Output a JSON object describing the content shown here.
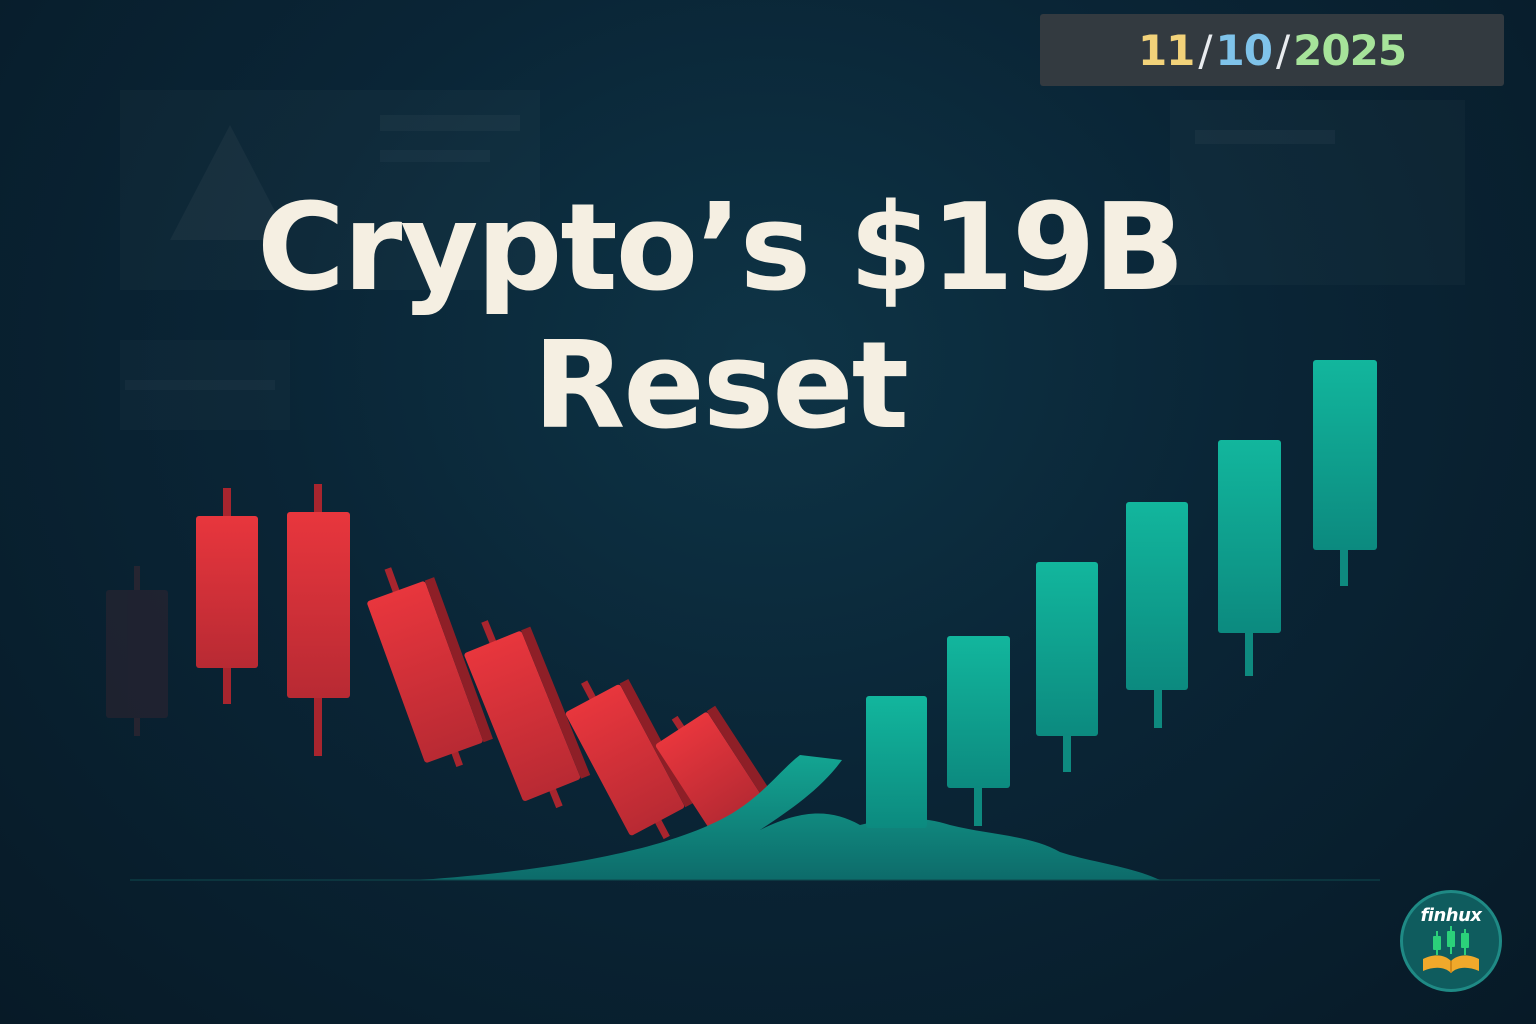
{
  "date": {
    "day": "11",
    "month": "10",
    "year": "2025",
    "separator": "/"
  },
  "headline": {
    "line1": "Crypto’s $19B",
    "line2": "Reset"
  },
  "logo": {
    "text": "finhux",
    "icon": "candlestick-book-icon"
  },
  "colors": {
    "bear": "#e5383f",
    "bull": "#10b39b",
    "date_day": "#f2d27a",
    "date_month": "#7fc3ea",
    "date_year": "#a6e39a",
    "headline": "#f5efe2"
  }
}
